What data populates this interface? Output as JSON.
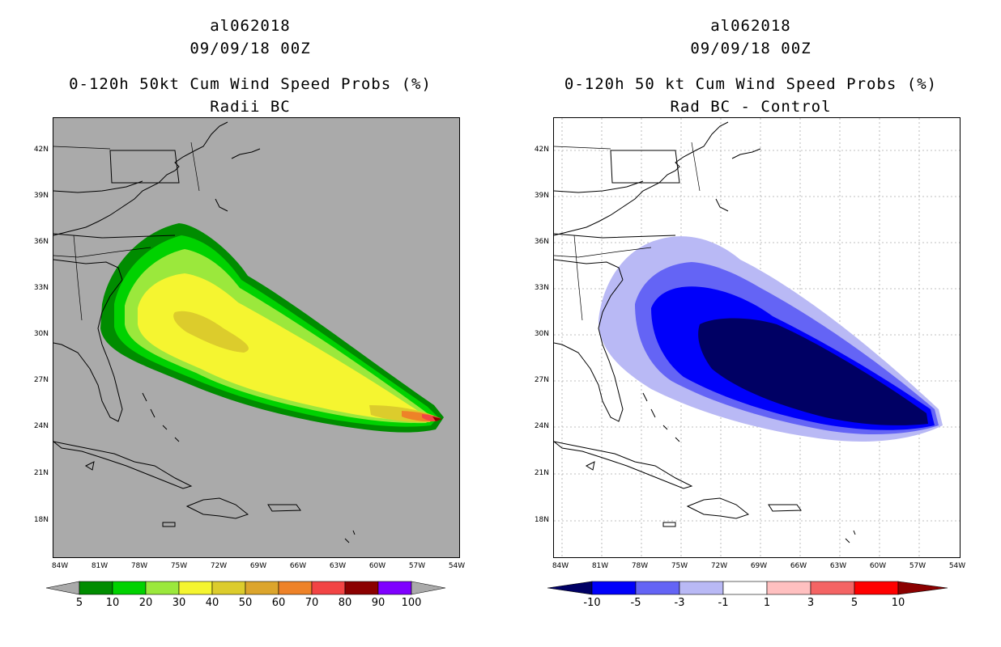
{
  "left": {
    "title1": "al062018",
    "title2": "09/09/18 00Z",
    "title3": "0-120h 50kt Cum Wind Speed Probs (%)",
    "title4": "Radii BC",
    "colorbar": {
      "labels": [
        "5",
        "10",
        "20",
        "30",
        "40",
        "50",
        "60",
        "70",
        "80",
        "90",
        "100"
      ],
      "colors": [
        "#008c00",
        "#00d200",
        "#9be83c",
        "#f5f530",
        "#dccc2c",
        "#dca52c",
        "#ee8228",
        "#f24444",
        "#8b0000",
        "#7f00ff"
      ],
      "end_color": "#aaaaaa"
    }
  },
  "right": {
    "title1": "al062018",
    "title2": "09/09/18 00Z",
    "title3": "0-120h 50 kt Cum Wind Speed Probs (%)",
    "title4": "Rad BC - Control",
    "colorbar": {
      "labels": [
        "-10",
        "-5",
        "-3",
        "-1",
        "1",
        "3",
        "5",
        "10"
      ],
      "colors": [
        "#0000fa",
        "#6464f5",
        "#b9b9f5",
        "#ffffff",
        "#ffc0c0",
        "#f46464",
        "#ff0000"
      ],
      "low_color": "#000064",
      "high_color": "#8b0000"
    }
  },
  "axes": {
    "lat_labels": [
      "42N",
      "39N",
      "36N",
      "33N",
      "30N",
      "27N",
      "24N",
      "21N",
      "18N"
    ],
    "lon_labels": [
      "84W",
      "81W",
      "78W",
      "75W",
      "72W",
      "69W",
      "66W",
      "63W",
      "60W",
      "57W",
      "54W"
    ]
  },
  "colors": {
    "land_bg_left": "#aaaaaa",
    "coast": "#000000",
    "grid": "#aaaaaa"
  }
}
